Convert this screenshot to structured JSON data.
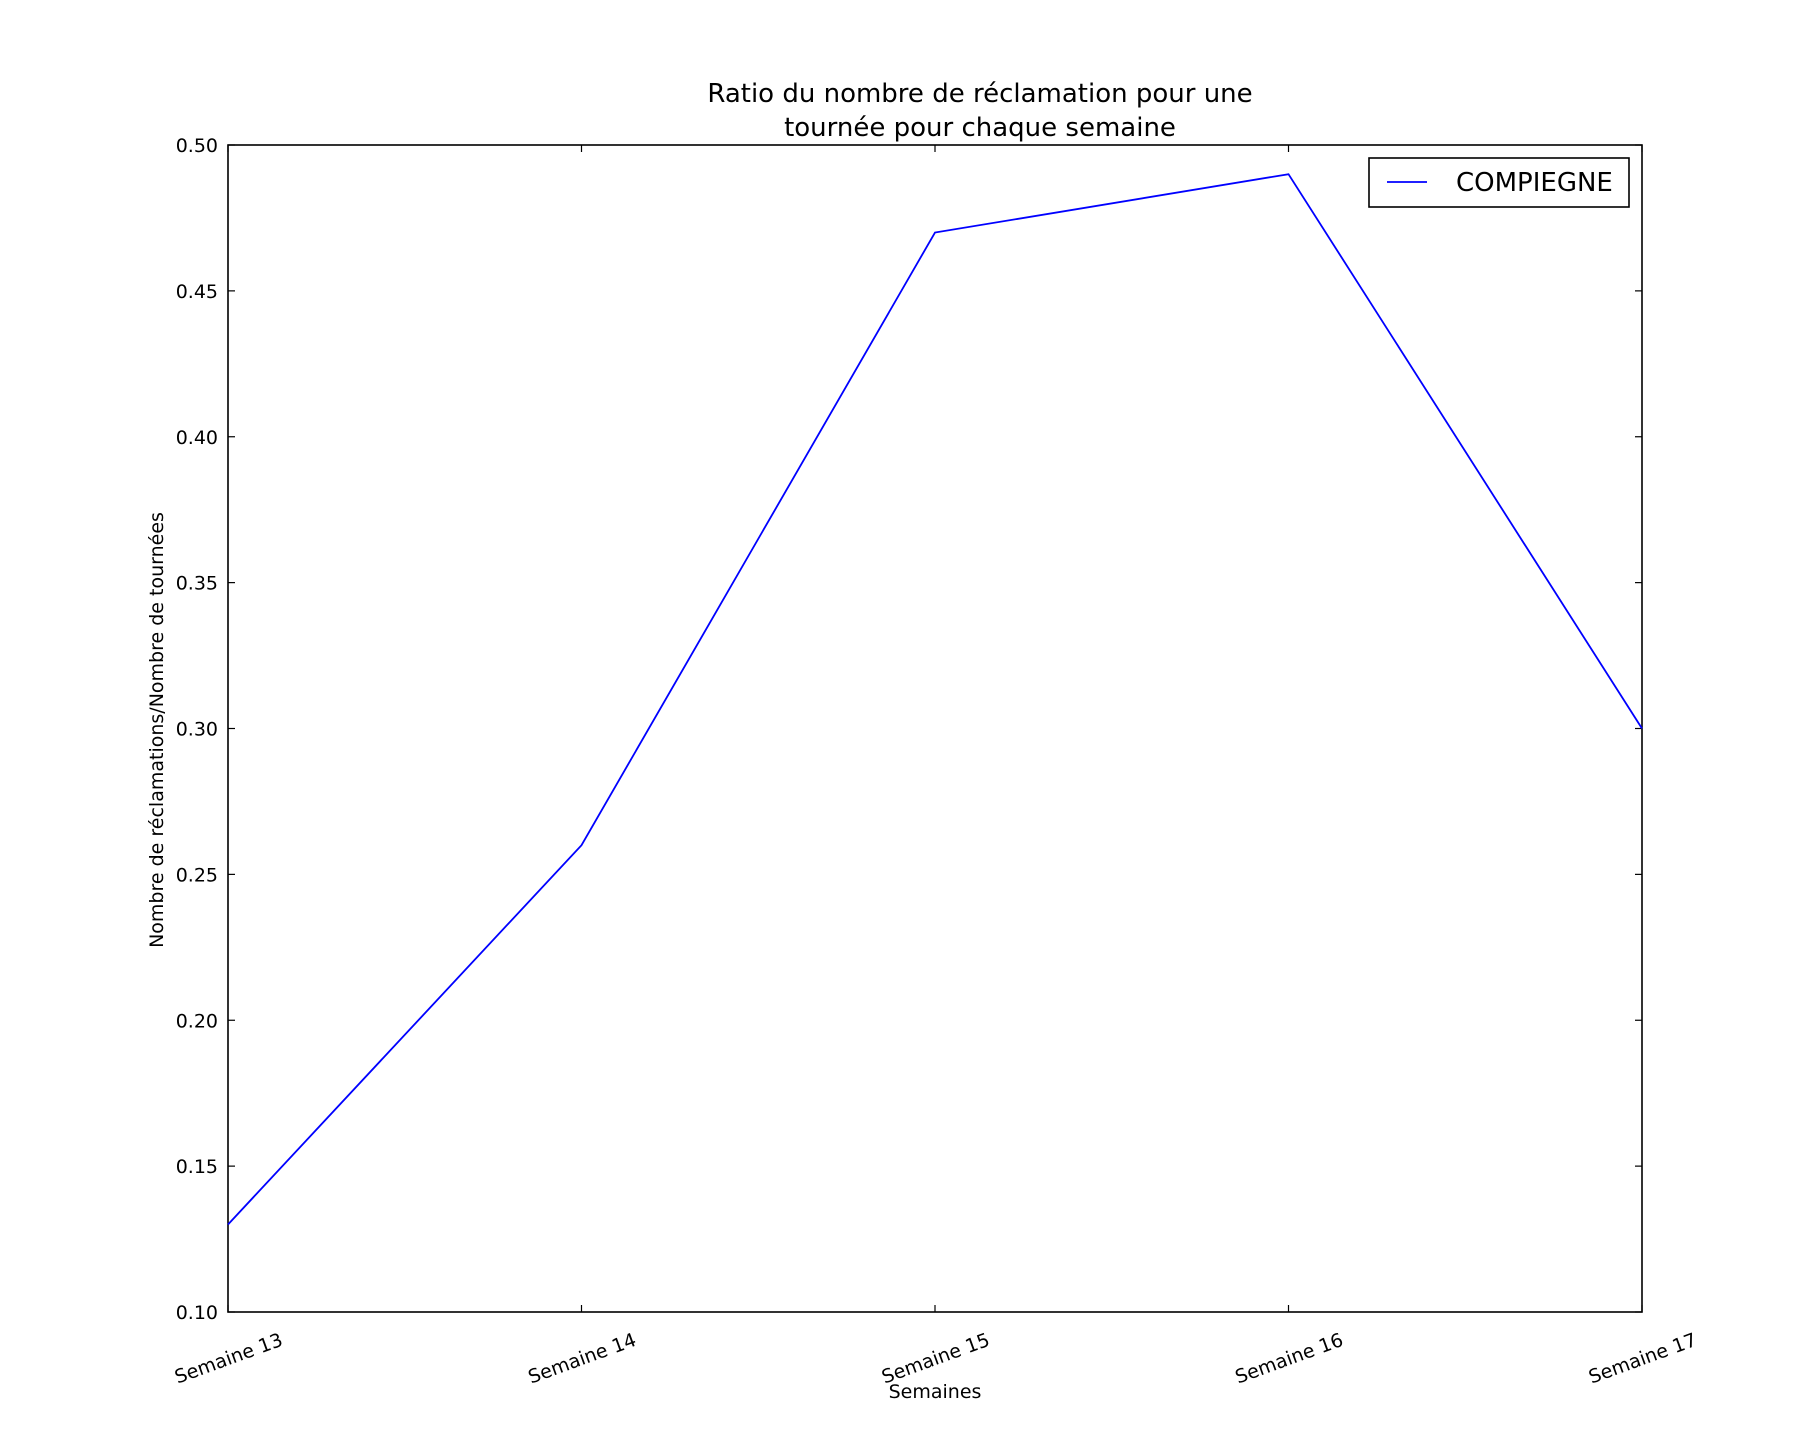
{
  "chart_data": {
    "type": "line",
    "title": "Ratio du nombre de réclamation pour une",
    "title_line2": "tournée pour chaque semaine",
    "xlabel": "Semaines",
    "ylabel": "Nombre de réclamations/Nombre de tournées",
    "categories": [
      "Semaine 13",
      "Semaine 14",
      "Semaine 15",
      "Semaine 16",
      "Semaine 17"
    ],
    "series": [
      {
        "name": "COMPIEGNE",
        "color": "#0000ff",
        "values": [
          0.13,
          0.26,
          0.47,
          0.49,
          0.3
        ]
      }
    ],
    "ylim": [
      0.1,
      0.5
    ],
    "yticks": [
      0.1,
      0.15,
      0.2,
      0.25,
      0.3,
      0.35,
      0.4,
      0.45,
      0.5
    ],
    "ytick_labels": [
      "0.10",
      "0.15",
      "0.20",
      "0.25",
      "0.30",
      "0.35",
      "0.40",
      "0.45",
      "0.50"
    ],
    "grid": false,
    "legend_position": "top-right"
  }
}
